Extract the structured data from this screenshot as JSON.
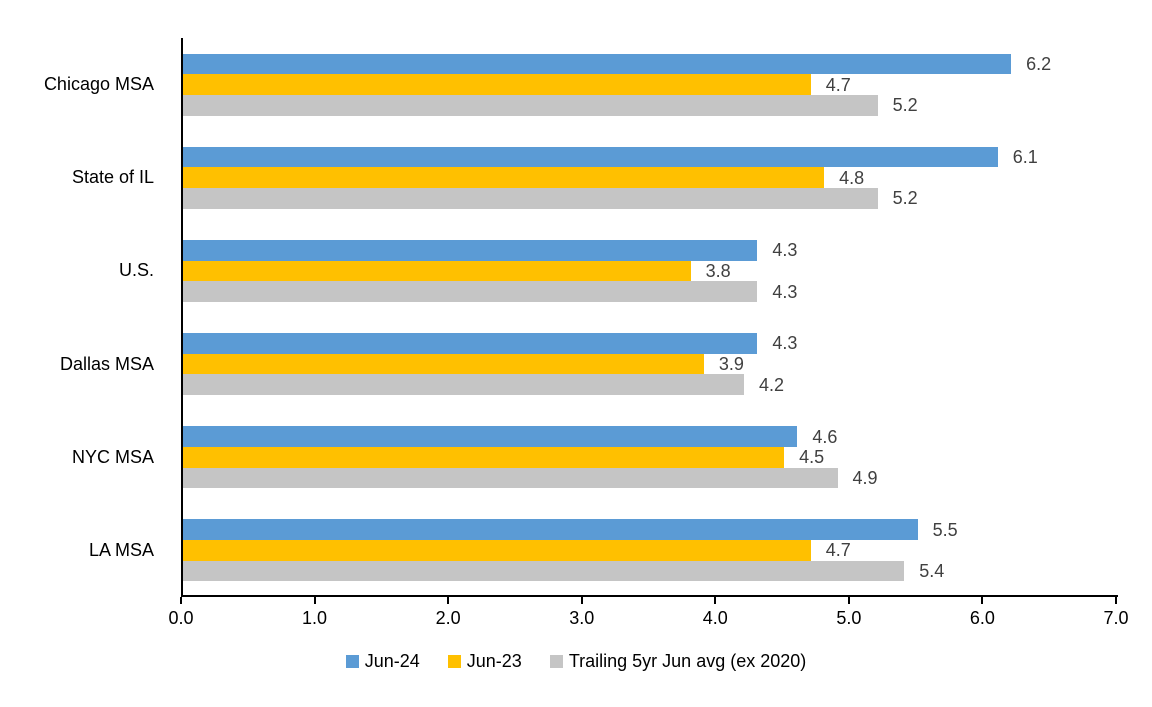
{
  "chart_data": {
    "type": "bar",
    "orientation": "horizontal",
    "title": "",
    "xlabel": "",
    "ylabel": "",
    "categories": [
      "Chicago MSA",
      "State of IL",
      "U.S.",
      "Dallas MSA",
      "NYC MSA",
      "LA MSA"
    ],
    "series": [
      {
        "name": "Jun-24",
        "color": "#5B9BD5",
        "values": [
          6.2,
          6.1,
          4.3,
          4.3,
          4.6,
          5.5
        ]
      },
      {
        "name": "Jun-23",
        "color": "#FFC000",
        "values": [
          4.7,
          4.8,
          3.8,
          3.9,
          4.5,
          4.7
        ]
      },
      {
        "name": "Trailing 5yr Jun avg (ex 2020)",
        "color": "#C5C5C5",
        "values": [
          5.2,
          5.2,
          4.3,
          4.2,
          4.9,
          5.4
        ]
      }
    ],
    "xlim": [
      0,
      7
    ],
    "x_ticks": [
      "0.0",
      "1.0",
      "2.0",
      "3.0",
      "4.0",
      "5.0",
      "6.0",
      "7.0"
    ],
    "grid": false,
    "value_labels": true,
    "legend_position": "bottom",
    "colors": {
      "axis_line": "#000000",
      "value_label_text": "#404040",
      "axis_label_text": "#000000",
      "background": "#ffffff"
    }
  }
}
